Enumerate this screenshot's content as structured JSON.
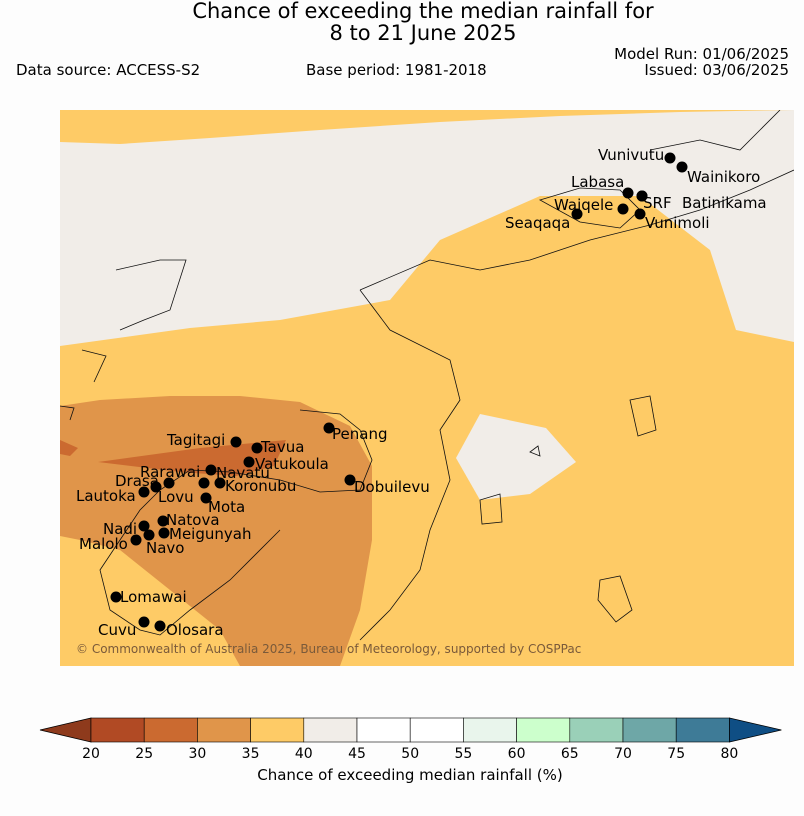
{
  "header": {
    "title_line1": "Chance of exceeding the median rainfall for",
    "title_line2": "8 to 21 June 2025",
    "data_source": "Data source: ACCESS-S2",
    "base_period": "Base period: 1981-2018",
    "model_run": "Model Run: 01/06/2025",
    "issued": "Issued: 03/06/2025"
  },
  "map": {
    "copyright": "© Commonwealth of Australia 2025, Bureau of Meteorology, supported by COSPPac",
    "stations": [
      {
        "name": "Vunivutu"
      },
      {
        "name": "Wainikoro"
      },
      {
        "name": "Labasa"
      },
      {
        "name": "Waiqele"
      },
      {
        "name": "SRF"
      },
      {
        "name": "Batinikama"
      },
      {
        "name": "Seaqaqa"
      },
      {
        "name": "Vunimoli"
      },
      {
        "name": "Tagitagi"
      },
      {
        "name": "Tavua"
      },
      {
        "name": "Penang"
      },
      {
        "name": "Vatukoula"
      },
      {
        "name": "Rarawai"
      },
      {
        "name": "Navatu"
      },
      {
        "name": "Drasa"
      },
      {
        "name": "Koronubu"
      },
      {
        "name": "Dobuilevu"
      },
      {
        "name": "Lautoka"
      },
      {
        "name": "Lovu"
      },
      {
        "name": "Mota"
      },
      {
        "name": "Natova"
      },
      {
        "name": "Nadi"
      },
      {
        "name": "Meigunyah"
      },
      {
        "name": "Malolo"
      },
      {
        "name": "Navo"
      },
      {
        "name": "Lomawai"
      },
      {
        "name": "Cuvu"
      },
      {
        "name": "Olosara"
      }
    ]
  },
  "colorbar": {
    "label": "Chance of exceeding median rainfall (%)",
    "ticks": [
      "20",
      "25",
      "30",
      "35",
      "40",
      "45",
      "50",
      "55",
      "60",
      "65",
      "70",
      "75",
      "80"
    ],
    "colors": [
      "#b14a24",
      "#cb6a30",
      "#e0954a",
      "#fecb66",
      "#f1ede8",
      "#ffffff",
      "#ffffff",
      "#e9f5ec",
      "#ccffcc",
      "#9ad0b8",
      "#6ea7a7",
      "#3e7b97",
      "#0f4e84"
    ]
  }
}
